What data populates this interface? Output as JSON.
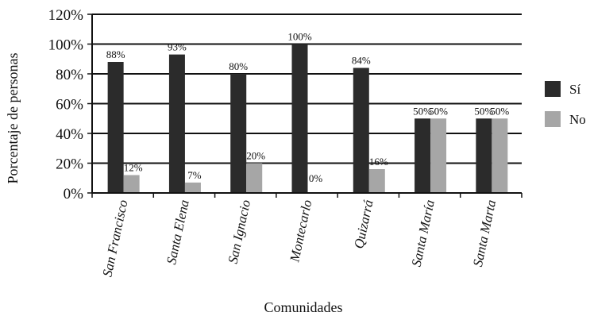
{
  "chart_data": {
    "type": "bar",
    "categories": [
      "San Francisco",
      "Santa Elena",
      "San Ignacio",
      "Montecarlo",
      "Quizarrá",
      "Santa María",
      "Santa Marta"
    ],
    "series": [
      {
        "name": "Sí",
        "color": "#2b2b2b",
        "values": [
          88,
          93,
          80,
          100,
          84,
          50,
          50
        ],
        "labels": [
          "88%",
          "93%",
          "80%",
          "100%",
          "84%",
          "50%",
          "50%"
        ]
      },
      {
        "name": "No",
        "color": "#a6a6a6",
        "values": [
          12,
          7,
          20,
          0,
          16,
          50,
          50
        ],
        "labels": [
          "12%",
          "7%",
          "20%",
          "0%",
          "16%",
          "50%",
          "50%"
        ]
      }
    ],
    "xlabel": "Comunidades",
    "ylabel": "Porcentaje de personas",
    "ylim": [
      0,
      120
    ],
    "yticks": [
      0,
      20,
      40,
      60,
      80,
      100,
      120
    ],
    "ytick_labels": [
      "0%",
      "20%",
      "40%",
      "60%",
      "80%",
      "100%",
      "120%"
    ],
    "grid": "horizontal",
    "legend": "right"
  }
}
